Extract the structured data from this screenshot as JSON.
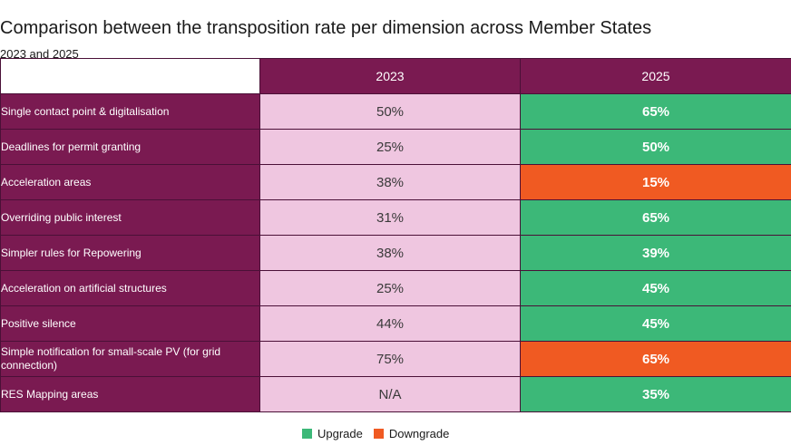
{
  "chart_data": {
    "type": "table",
    "title": "Comparison between the transposition rate per dimension across Member States",
    "subtitle": "2023 and 2025",
    "columns": [
      "2023",
      "2025"
    ],
    "rows": [
      {
        "dimension": "Single contact point & digitalisation",
        "v2023": "50%",
        "v2025": "65%",
        "change": "upgrade"
      },
      {
        "dimension": "Deadlines for permit granting",
        "v2023": "25%",
        "v2025": "50%",
        "change": "upgrade"
      },
      {
        "dimension": "Acceleration areas",
        "v2023": "38%",
        "v2025": "15%",
        "change": "downgrade"
      },
      {
        "dimension": "Overriding public interest",
        "v2023": "31%",
        "v2025": "65%",
        "change": "upgrade"
      },
      {
        "dimension": "Simpler rules for Repowering",
        "v2023": "38%",
        "v2025": "39%",
        "change": "upgrade"
      },
      {
        "dimension": "Acceleration on artificial structures",
        "v2023": "25%",
        "v2025": "45%",
        "change": "upgrade"
      },
      {
        "dimension": "Positive silence",
        "v2023": "44%",
        "v2025": "45%",
        "change": "upgrade"
      },
      {
        "dimension": "Simple notification for small-scale PV (for grid connection)",
        "v2023": "75%",
        "v2025": "65%",
        "change": "downgrade"
      },
      {
        "dimension": "RES Mapping areas",
        "v2023": "N/A",
        "v2025": "35%",
        "change": "upgrade"
      }
    ],
    "legend": [
      {
        "key": "upgrade",
        "label": "Upgrade",
        "color": "#3cb878"
      },
      {
        "key": "downgrade",
        "label": "Downgrade",
        "color": "#f05a22"
      }
    ]
  }
}
